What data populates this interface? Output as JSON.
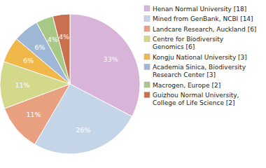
{
  "chart_data": {
    "type": "pie",
    "categories": [
      "Henan Normal University [18]",
      "Mined from GenBank, NCBI [14]",
      "Landcare Research, Auckland [6]",
      "Centre for Biodiversity\nGenomics [6]",
      "Kongju National University [3]",
      "Academia Sinica, Biodiversity\nResearch Center [3]",
      "Macrogen, Europe [2]",
      "Guizhou Normal University,\nCollege of Life Science [2]"
    ],
    "values": [
      33,
      26,
      11,
      11,
      6,
      6,
      4,
      4
    ],
    "value_labels": [
      "33%",
      "26%",
      "11%",
      "11%",
      "6%",
      "6%",
      "4%",
      "4%"
    ],
    "colors": [
      "#d8b4d8",
      "#c5d5e8",
      "#e8a080",
      "#d4d88a",
      "#f0b84a",
      "#a0b8d8",
      "#a8c888",
      "#c87050"
    ],
    "data_labels": true,
    "legend": "right"
  }
}
